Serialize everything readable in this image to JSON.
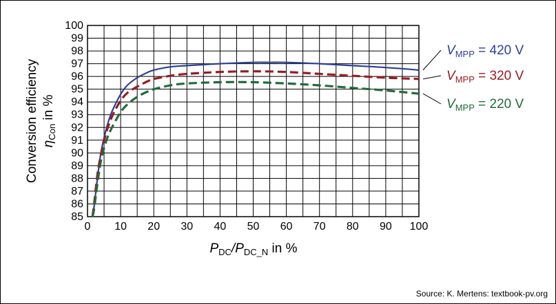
{
  "chart_data": {
    "type": "line",
    "x_range": [
      0,
      100
    ],
    "y_range": [
      85,
      100
    ],
    "x_ticks": [
      "0",
      "10",
      "20",
      "30",
      "40",
      "50",
      "60",
      "70",
      "80",
      "90",
      "100"
    ],
    "y_ticks": [
      "85",
      "86",
      "87",
      "88",
      "89",
      "90",
      "91",
      "92",
      "93",
      "94",
      "95",
      "96",
      "97",
      "98",
      "99",
      "100"
    ],
    "grid": true,
    "legend_placement": "right",
    "xlabel": {
      "main": "P",
      "sub1": "DC",
      "slash": "/P",
      "sub2": "DC_N",
      "tail": " in %"
    },
    "ylabel": {
      "line1": "Conversion efficiency",
      "eta": "η",
      "sub": "Con",
      "tail": " in %"
    },
    "series": [
      {
        "name": "V_MPP = 420 V",
        "label": {
          "v": "V",
          "sub": "MPP",
          "rest": " = 420 V"
        },
        "color": "#2b3f96",
        "dash": "solid",
        "x": [
          1.5,
          2,
          3,
          4,
          5,
          6,
          7,
          8,
          10,
          12,
          15,
          18,
          20,
          25,
          30,
          40,
          50,
          55,
          60,
          70,
          80,
          90,
          100
        ],
        "y": [
          85.0,
          85.8,
          88.0,
          89.9,
          91.2,
          92.2,
          93.0,
          93.6,
          94.6,
          95.3,
          95.9,
          96.3,
          96.5,
          96.75,
          96.85,
          97.0,
          97.1,
          97.1,
          97.1,
          97.0,
          96.85,
          96.7,
          96.5
        ]
      },
      {
        "name": "V_MPP = 320 V",
        "label": {
          "v": "V",
          "sub": "MPP",
          "rest": " = 320 V"
        },
        "color": "#9a1b22",
        "dash": "dashed",
        "x": [
          1.5,
          2,
          3,
          4,
          5,
          6,
          7,
          8,
          10,
          12,
          15,
          18,
          20,
          25,
          30,
          40,
          50,
          60,
          70,
          80,
          90,
          100
        ],
        "y": [
          85.0,
          86.0,
          88.3,
          89.8,
          91.0,
          91.9,
          92.6,
          93.2,
          94.1,
          94.7,
          95.2,
          95.6,
          95.8,
          96.05,
          96.2,
          96.35,
          96.4,
          96.35,
          96.2,
          96.05,
          95.9,
          95.8
        ]
      },
      {
        "name": "V_MPP = 220 V",
        "label": {
          "v": "V",
          "sub": "MPP",
          "rest": " = 220 V"
        },
        "color": "#1f6b3a",
        "dash": "dashed",
        "x": [
          1.5,
          2,
          3,
          4,
          5,
          6,
          7,
          8,
          10,
          12,
          15,
          18,
          20,
          25,
          30,
          40,
          50,
          60,
          70,
          80,
          90,
          100
        ],
        "y": [
          85.0,
          85.6,
          87.6,
          89.3,
          90.4,
          91.2,
          91.8,
          92.3,
          93.2,
          93.8,
          94.4,
          94.8,
          95.0,
          95.3,
          95.45,
          95.55,
          95.55,
          95.45,
          95.3,
          95.1,
          94.9,
          94.65
        ]
      }
    ]
  },
  "footer": {
    "source": "Source: K. Mertens: textbook-pv.org"
  }
}
